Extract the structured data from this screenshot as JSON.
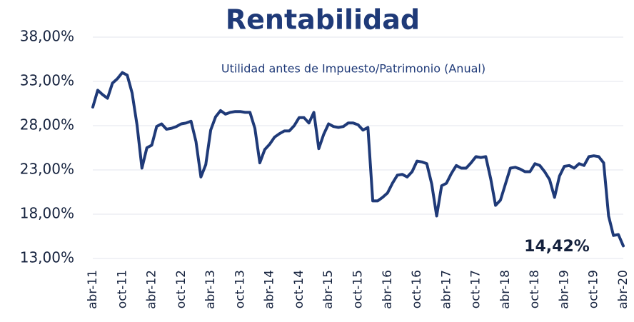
{
  "chart_data": {
    "type": "line",
    "title": "Rentabilidad",
    "subtitle": "Utilidad antes de Impuesto/Patrimonio (Anual)",
    "annotation": "14,42%",
    "categories": [
      "abr-11",
      null,
      null,
      null,
      null,
      null,
      "oct-11",
      null,
      null,
      null,
      null,
      null,
      "abr-12",
      null,
      null,
      null,
      null,
      null,
      "oct-12",
      null,
      null,
      null,
      null,
      null,
      "abr-13",
      null,
      null,
      null,
      null,
      null,
      "oct-13",
      null,
      null,
      null,
      null,
      null,
      "abr-14",
      null,
      null,
      null,
      null,
      null,
      "oct-14",
      null,
      null,
      null,
      null,
      null,
      "abr-15",
      null,
      null,
      null,
      null,
      null,
      "oct-15",
      null,
      null,
      null,
      null,
      null,
      "abr-16",
      null,
      null,
      null,
      null,
      null,
      "oct-16",
      null,
      null,
      null,
      null,
      null,
      "abr-17",
      null,
      null,
      null,
      null,
      null,
      "oct-17",
      null,
      null,
      null,
      null,
      null,
      "abr-18",
      null,
      null,
      null,
      null,
      null,
      "oct-18",
      null,
      null,
      null,
      null,
      null,
      "abr-19",
      null,
      null,
      null,
      null,
      null,
      "oct-19",
      null,
      null,
      null,
      null,
      null,
      "abr-20"
    ],
    "series": [
      {
        "color": "#1f3a78",
        "values": [
          30.1,
          32.0,
          31.5,
          31.1,
          32.8,
          33.3,
          34.0,
          33.7,
          31.7,
          28.1,
          23.2,
          25.5,
          25.8,
          27.9,
          28.2,
          27.6,
          27.7,
          27.9,
          28.2,
          28.3,
          28.5,
          26.2,
          22.2,
          23.6,
          27.5,
          29.0,
          29.7,
          29.3,
          29.5,
          29.6,
          29.6,
          29.5,
          29.5,
          27.7,
          23.8,
          25.3,
          25.9,
          26.7,
          27.1,
          27.4,
          27.4,
          28.0,
          28.9,
          28.9,
          28.3,
          29.5,
          25.4,
          27.0,
          28.2,
          27.9,
          27.8,
          27.9,
          28.3,
          28.3,
          28.1,
          27.5,
          27.8,
          19.5,
          19.5,
          19.9,
          20.4,
          21.5,
          22.4,
          22.5,
          22.2,
          22.8,
          24.0,
          23.9,
          23.7,
          21.4,
          17.8,
          21.2,
          21.5,
          22.6,
          23.5,
          23.2,
          23.2,
          23.8,
          24.5,
          24.4,
          24.5,
          22.0,
          19.0,
          19.6,
          21.4,
          23.2,
          23.3,
          23.1,
          22.8,
          22.8,
          23.7,
          23.5,
          22.8,
          21.9,
          19.9,
          22.3,
          23.4,
          23.5,
          23.2,
          23.7,
          23.5,
          24.5,
          24.6,
          24.5,
          23.8,
          17.8,
          15.6,
          15.7,
          14.42
        ]
      }
    ],
    "ylim": [
      13,
      38
    ],
    "yticks": [
      {
        "value": 13,
        "label": "13,00%"
      },
      {
        "value": 18,
        "label": "18,00%"
      },
      {
        "value": 23,
        "label": "23,00%"
      },
      {
        "value": 28,
        "label": "28,00%"
      },
      {
        "value": 33,
        "label": "33,00%"
      },
      {
        "value": 38,
        "label": "38,00%"
      }
    ],
    "grid": true
  }
}
